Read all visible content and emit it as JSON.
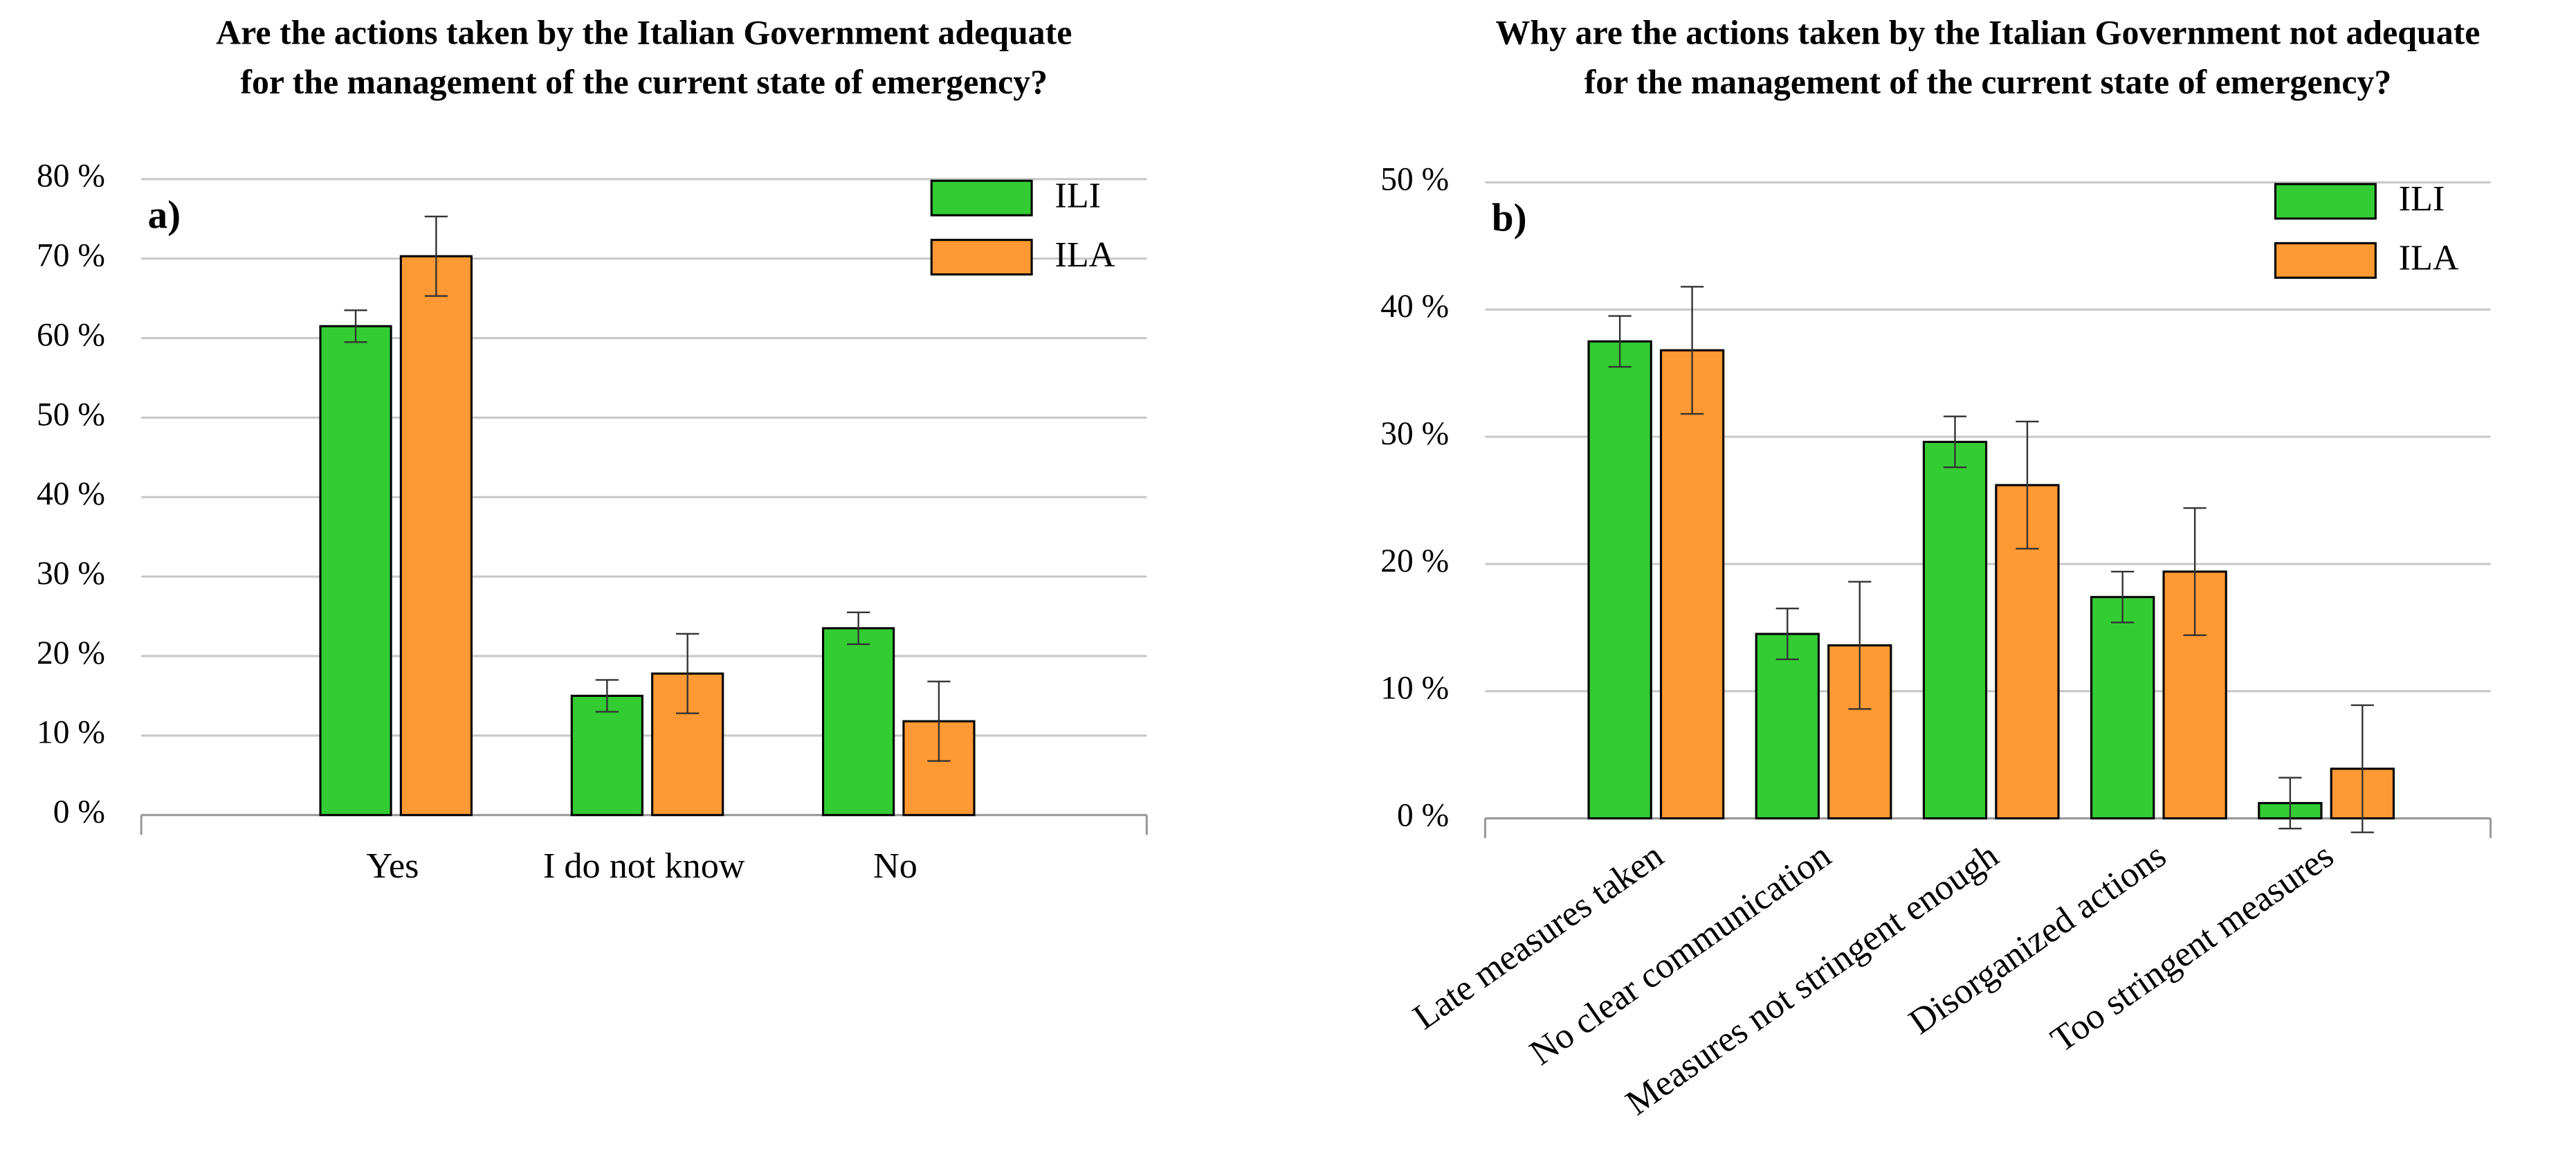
{
  "chart_data": [
    {
      "type": "bar",
      "title": [
        "Are the actions taken by the Italian Government adequate",
        "for the management of the current state of emergency?"
      ],
      "panel_label": "a)",
      "categories": [
        "Yes",
        "I do not know",
        "No"
      ],
      "series": [
        {
          "name": "ILI",
          "color": "#33cc33",
          "values": [
            61.5,
            15,
            23.5
          ],
          "errors": [
            2,
            2,
            2
          ]
        },
        {
          "name": "ILA",
          "color": "#ff9933",
          "values": [
            70.3,
            17.8,
            11.8
          ],
          "errors": [
            5,
            5,
            5
          ]
        }
      ],
      "ylim": [
        0,
        80
      ],
      "yticks": [
        {
          "value": 0,
          "label": "0 %"
        },
        {
          "value": 10,
          "label": "10 %"
        },
        {
          "value": 20,
          "label": "20 %"
        },
        {
          "value": 30,
          "label": "30 %"
        },
        {
          "value": 40,
          "label": "40 %"
        },
        {
          "value": 50,
          "label": "50 %"
        },
        {
          "value": 60,
          "label": "60 %"
        },
        {
          "value": 70,
          "label": "70 %"
        },
        {
          "value": 80,
          "label": "80 %"
        }
      ],
      "grid": true,
      "legend": "upper right",
      "rotate_labels": false
    },
    {
      "type": "bar",
      "title": [
        "Why are the actions taken by the Italian Government not adequate",
        "for the management of the current state of emergency?"
      ],
      "panel_label": "b)",
      "categories": [
        "Late measures taken",
        "No clear communication",
        "Measures not stringent enough",
        "Disorganized actions",
        "Too stringent measures"
      ],
      "series": [
        {
          "name": "ILI",
          "color": "#33cc33",
          "values": [
            37.5,
            14.5,
            29.6,
            17.4,
            1.2
          ],
          "errors": [
            2,
            2,
            2,
            2,
            2
          ]
        },
        {
          "name": "ILA",
          "color": "#ff9933",
          "values": [
            36.8,
            13.6,
            26.2,
            19.4,
            3.9
          ],
          "errors": [
            5,
            5,
            5,
            5,
            5
          ]
        }
      ],
      "ylim": [
        0,
        50
      ],
      "yticks": [
        {
          "value": 0,
          "label": "0 %"
        },
        {
          "value": 10,
          "label": "10 %"
        },
        {
          "value": 20,
          "label": "20 %"
        },
        {
          "value": 30,
          "label": "30 %"
        },
        {
          "value": 40,
          "label": "40 %"
        },
        {
          "value": 50,
          "label": "50 %"
        }
      ],
      "grid": true,
      "legend": "upper right",
      "rotate_labels": true
    }
  ]
}
